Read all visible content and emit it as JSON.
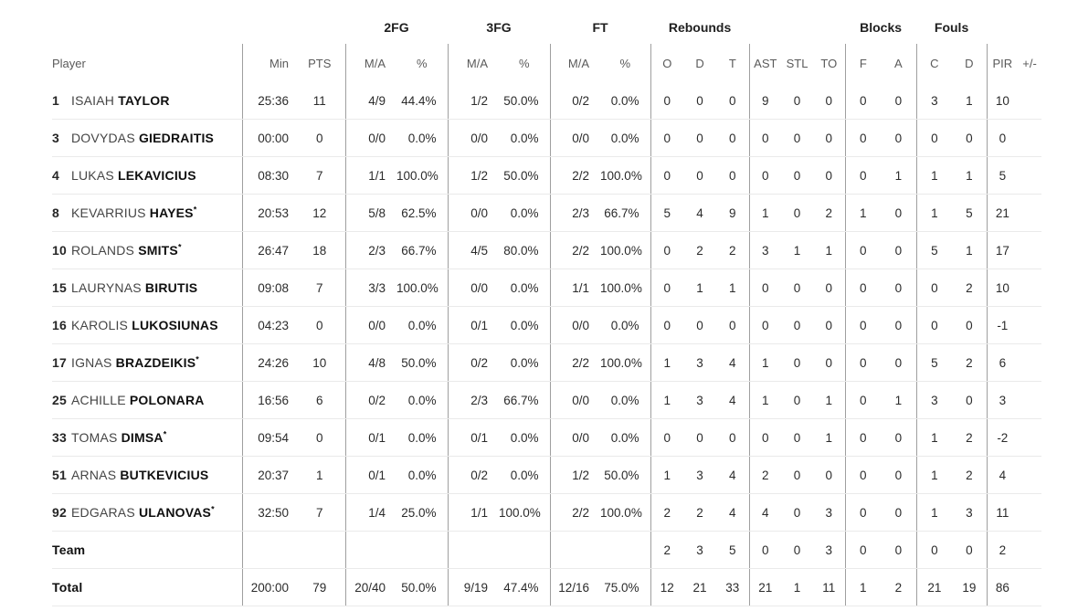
{
  "table": {
    "group_headers": [
      "2FG",
      "3FG",
      "FT",
      "Rebounds",
      "Blocks",
      "Fouls"
    ],
    "col_headers": [
      "Player",
      "Min",
      "PTS",
      "M/A",
      "%",
      "M/A",
      "%",
      "M/A",
      "%",
      "O",
      "D",
      "T",
      "AST",
      "STL",
      "TO",
      "F",
      "A",
      "C",
      "D",
      "PIR",
      "+/-"
    ],
    "rows": [
      {
        "num": "1",
        "first": "ISAIAH",
        "last": "TAYLOR",
        "starter": false,
        "cells": [
          "25:36",
          "11",
          "4/9",
          "44.4%",
          "1/2",
          "50.0%",
          "0/2",
          "0.0%",
          "0",
          "0",
          "0",
          "9",
          "0",
          "0",
          "0",
          "0",
          "3",
          "1",
          "10",
          ""
        ]
      },
      {
        "num": "3",
        "first": "DOVYDAS",
        "last": "GIEDRAITIS",
        "starter": false,
        "cells": [
          "00:00",
          "0",
          "0/0",
          "0.0%",
          "0/0",
          "0.0%",
          "0/0",
          "0.0%",
          "0",
          "0",
          "0",
          "0",
          "0",
          "0",
          "0",
          "0",
          "0",
          "0",
          "0",
          ""
        ]
      },
      {
        "num": "4",
        "first": "LUKAS",
        "last": "LEKAVICIUS",
        "starter": false,
        "cells": [
          "08:30",
          "7",
          "1/1",
          "100.0%",
          "1/2",
          "50.0%",
          "2/2",
          "100.0%",
          "0",
          "0",
          "0",
          "0",
          "0",
          "0",
          "0",
          "1",
          "1",
          "1",
          "5",
          ""
        ]
      },
      {
        "num": "8",
        "first": "KEVARRIUS",
        "last": "HAYES",
        "starter": true,
        "cells": [
          "20:53",
          "12",
          "5/8",
          "62.5%",
          "0/0",
          "0.0%",
          "2/3",
          "66.7%",
          "5",
          "4",
          "9",
          "1",
          "0",
          "2",
          "1",
          "0",
          "1",
          "5",
          "21",
          ""
        ]
      },
      {
        "num": "10",
        "first": "ROLANDS",
        "last": "SMITS",
        "starter": true,
        "cells": [
          "26:47",
          "18",
          "2/3",
          "66.7%",
          "4/5",
          "80.0%",
          "2/2",
          "100.0%",
          "0",
          "2",
          "2",
          "3",
          "1",
          "1",
          "0",
          "0",
          "5",
          "1",
          "17",
          ""
        ]
      },
      {
        "num": "15",
        "first": "LAURYNAS",
        "last": "BIRUTIS",
        "starter": false,
        "cells": [
          "09:08",
          "7",
          "3/3",
          "100.0%",
          "0/0",
          "0.0%",
          "1/1",
          "100.0%",
          "0",
          "1",
          "1",
          "0",
          "0",
          "0",
          "0",
          "0",
          "0",
          "2",
          "10",
          ""
        ]
      },
      {
        "num": "16",
        "first": "KAROLIS",
        "last": "LUKOSIUNAS",
        "starter": false,
        "cells": [
          "04:23",
          "0",
          "0/0",
          "0.0%",
          "0/1",
          "0.0%",
          "0/0",
          "0.0%",
          "0",
          "0",
          "0",
          "0",
          "0",
          "0",
          "0",
          "0",
          "0",
          "0",
          "-1",
          ""
        ]
      },
      {
        "num": "17",
        "first": "IGNAS",
        "last": "BRAZDEIKIS",
        "starter": true,
        "cells": [
          "24:26",
          "10",
          "4/8",
          "50.0%",
          "0/2",
          "0.0%",
          "2/2",
          "100.0%",
          "1",
          "3",
          "4",
          "1",
          "0",
          "0",
          "0",
          "0",
          "5",
          "2",
          "6",
          ""
        ]
      },
      {
        "num": "25",
        "first": "ACHILLE",
        "last": "POLONARA",
        "starter": false,
        "cells": [
          "16:56",
          "6",
          "0/2",
          "0.0%",
          "2/3",
          "66.7%",
          "0/0",
          "0.0%",
          "1",
          "3",
          "4",
          "1",
          "0",
          "1",
          "0",
          "1",
          "3",
          "0",
          "3",
          ""
        ]
      },
      {
        "num": "33",
        "first": "TOMAS",
        "last": "DIMSA",
        "starter": true,
        "cells": [
          "09:54",
          "0",
          "0/1",
          "0.0%",
          "0/1",
          "0.0%",
          "0/0",
          "0.0%",
          "0",
          "0",
          "0",
          "0",
          "0",
          "1",
          "0",
          "0",
          "1",
          "2",
          "-2",
          ""
        ]
      },
      {
        "num": "51",
        "first": "ARNAS",
        "last": "BUTKEVICIUS",
        "starter": false,
        "cells": [
          "20:37",
          "1",
          "0/1",
          "0.0%",
          "0/2",
          "0.0%",
          "1/2",
          "50.0%",
          "1",
          "3",
          "4",
          "2",
          "0",
          "0",
          "0",
          "0",
          "1",
          "2",
          "4",
          ""
        ]
      },
      {
        "num": "92",
        "first": "EDGARAS",
        "last": "ULANOVAS",
        "starter": true,
        "cells": [
          "32:50",
          "7",
          "1/4",
          "25.0%",
          "1/1",
          "100.0%",
          "2/2",
          "100.0%",
          "2",
          "2",
          "4",
          "4",
          "0",
          "3",
          "0",
          "0",
          "1",
          "3",
          "11",
          ""
        ]
      },
      {
        "label": "Team",
        "cells": [
          "",
          "",
          "",
          "",
          "",
          "",
          "",
          "",
          "2",
          "3",
          "5",
          "0",
          "0",
          "3",
          "0",
          "0",
          "0",
          "0",
          "2",
          ""
        ]
      },
      {
        "label": "Total",
        "cells": [
          "200:00",
          "79",
          "20/40",
          "50.0%",
          "9/19",
          "47.4%",
          "12/16",
          "75.0%",
          "12",
          "21",
          "33",
          "21",
          "1",
          "11",
          "1",
          "2",
          "21",
          "19",
          "86",
          ""
        ]
      }
    ]
  }
}
